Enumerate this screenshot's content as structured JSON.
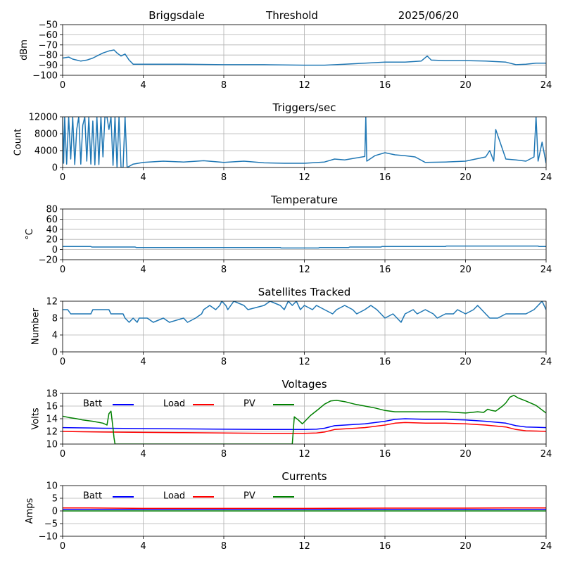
{
  "header": {
    "station": "Briggsdale",
    "mode": "Threshold",
    "date": "2025/06/20"
  },
  "chart_data": [
    {
      "type": "line",
      "title": "",
      "xlabel": "",
      "ylabel": "dBm",
      "xlim": [
        0,
        24
      ],
      "ylim": [
        -100,
        -50
      ],
      "xticks": [
        0,
        4,
        8,
        12,
        16,
        20,
        24
      ],
      "yticks": [
        -100,
        -90,
        -80,
        -70,
        -60,
        -50
      ],
      "grid": true,
      "series": [
        {
          "color": "#1f77b4",
          "x": [
            0,
            0.3,
            0.5,
            0.7,
            0.9,
            1.2,
            1.5,
            1.8,
            2.0,
            2.3,
            2.55,
            2.7,
            2.9,
            3.1,
            3.3,
            3.5,
            4,
            6,
            8,
            10,
            12,
            13,
            14,
            15,
            16,
            17,
            17.8,
            18.1,
            18.3,
            19,
            20,
            21,
            22,
            22.5,
            23,
            23.5,
            24
          ],
          "y": [
            -83,
            -82,
            -84,
            -85,
            -86,
            -85,
            -83,
            -80,
            -78,
            -76,
            -75,
            -78,
            -81,
            -79,
            -85,
            -89,
            -89,
            -89,
            -89.5,
            -89.5,
            -90,
            -90,
            -89,
            -88,
            -87,
            -87,
            -86,
            -81,
            -85,
            -85.5,
            -85.5,
            -86,
            -87,
            -89.5,
            -89,
            -88,
            -88
          ]
        }
      ]
    },
    {
      "type": "line",
      "title": "Triggers/sec",
      "xlabel": "",
      "ylabel": "Count",
      "xlim": [
        0,
        24
      ],
      "ylim": [
        0,
        12000
      ],
      "xticks": [
        0,
        4,
        8,
        12,
        16,
        20,
        24
      ],
      "yticks": [
        0,
        4000,
        8000,
        12000
      ],
      "grid": true,
      "series": [
        {
          "color": "#1f77b4",
          "x": [
            0,
            0.05,
            0.1,
            0.2,
            0.3,
            0.4,
            0.5,
            0.6,
            0.7,
            0.8,
            0.9,
            1.0,
            1.1,
            1.2,
            1.3,
            1.4,
            1.5,
            1.6,
            1.7,
            1.8,
            1.9,
            2.0,
            2.1,
            2.2,
            2.3,
            2.4,
            2.5,
            2.6,
            2.7,
            2.8,
            2.9,
            3.0,
            3.1,
            3.2,
            3.5,
            4.0,
            5,
            6,
            7,
            8,
            9,
            10,
            11,
            12,
            13,
            13.5,
            14,
            14.5,
            15,
            15.05,
            15.1,
            15.5,
            16,
            16.5,
            17,
            17.5,
            18,
            19,
            20,
            20.5,
            21,
            21.2,
            21.4,
            21.5,
            22,
            22.5,
            23,
            23.4,
            23.5,
            23.6,
            23.8,
            24
          ],
          "y": [
            12000,
            1000,
            12000,
            800,
            12000,
            2000,
            12000,
            700,
            9000,
            12000,
            800,
            10000,
            12000,
            1500,
            12000,
            800,
            11000,
            600,
            12000,
            700,
            12000,
            2500,
            12000,
            12000,
            9000,
            12000,
            500,
            12000,
            0,
            12000,
            0,
            0,
            12000,
            0,
            800,
            1200,
            1500,
            1300,
            1600,
            1200,
            1500,
            1100,
            1000,
            1000,
            1300,
            2000,
            1800,
            2200,
            2600,
            12000,
            1500,
            2800,
            3500,
            3000,
            2800,
            2500,
            1200,
            1300,
            1500,
            2000,
            2500,
            4000,
            1500,
            9000,
            2000,
            1800,
            1500,
            2500,
            12000,
            1500,
            6000,
            1000
          ]
        }
      ]
    },
    {
      "type": "line",
      "title": "Temperature",
      "xlabel": "",
      "ylabel": "°C",
      "xlim": [
        0,
        24
      ],
      "ylim": [
        -20,
        80
      ],
      "xticks": [
        0,
        4,
        8,
        12,
        16,
        20,
        24
      ],
      "yticks": [
        -20,
        0,
        20,
        40,
        60,
        80
      ],
      "grid": true,
      "series": [
        {
          "color": "#1f77b4",
          "x": [
            0,
            1.4,
            1.45,
            3.6,
            3.65,
            10.8,
            10.85,
            12.7,
            12.75,
            14.2,
            14.25,
            15.8,
            15.85,
            19.0,
            19.05,
            23.6,
            23.65,
            24
          ],
          "y": [
            6,
            6,
            5,
            5,
            4,
            4,
            3,
            3,
            4,
            4,
            5,
            5,
            6,
            6,
            7,
            7,
            6,
            6
          ]
        }
      ]
    },
    {
      "type": "line",
      "title": "Satellites Tracked",
      "xlabel": "",
      "ylabel": "Number",
      "xlim": [
        0,
        24
      ],
      "ylim": [
        0,
        12
      ],
      "xticks": [
        0,
        4,
        8,
        12,
        16,
        20,
        24
      ],
      "yticks": [
        0,
        4,
        8,
        12
      ],
      "grid": true,
      "series": [
        {
          "color": "#1f77b4",
          "x": [
            0,
            0.25,
            0.4,
            1.4,
            1.5,
            2.3,
            2.4,
            3.0,
            3.1,
            3.3,
            3.5,
            3.7,
            3.8,
            4.2,
            4.5,
            5.0,
            5.3,
            6.0,
            6.2,
            6.6,
            6.9,
            7.0,
            7.3,
            7.6,
            7.8,
            7.9,
            8.1,
            8.2,
            8.5,
            9.0,
            9.2,
            10.0,
            10.3,
            10.8,
            11.0,
            11.2,
            11.4,
            11.6,
            11.8,
            12.0,
            12.4,
            12.6,
            13.0,
            13.4,
            13.6,
            14.0,
            14.4,
            14.6,
            15.0,
            15.3,
            15.6,
            15.8,
            16.0,
            16.4,
            16.6,
            16.8,
            17.0,
            17.4,
            17.6,
            18.0,
            18.4,
            18.6,
            19.0,
            19.4,
            19.6,
            20.0,
            20.4,
            20.6,
            20.8,
            21.0,
            21.2,
            21.4,
            21.6,
            22.0,
            22.4,
            22.6,
            23.0,
            23.4,
            23.6,
            23.8,
            24
          ],
          "y": [
            10,
            10,
            9,
            9,
            10,
            10,
            9,
            9,
            8,
            7,
            8,
            7,
            8,
            8,
            7,
            8,
            7,
            8,
            7,
            8,
            9,
            10,
            11,
            10,
            11,
            12,
            11,
            10,
            12,
            11,
            10,
            11,
            12,
            11,
            10,
            12,
            11,
            12,
            10,
            11,
            10,
            11,
            10,
            9,
            10,
            11,
            10,
            9,
            10,
            11,
            10,
            9,
            8,
            9,
            8,
            7,
            9,
            10,
            9,
            10,
            9,
            8,
            9,
            9,
            10,
            9,
            10,
            11,
            10,
            9,
            8,
            8,
            8,
            9,
            9,
            9,
            9,
            10,
            11,
            12,
            10
          ]
        }
      ]
    },
    {
      "type": "line",
      "title": "Voltages",
      "xlabel": "",
      "ylabel": "Volts",
      "xlim": [
        0,
        24
      ],
      "ylim": [
        10,
        18
      ],
      "xticks": [
        0,
        4,
        8,
        12,
        16,
        20,
        24
      ],
      "yticks": [
        10,
        12,
        14,
        16,
        18
      ],
      "grid": true,
      "legend": "top-left, horizontal",
      "series": [
        {
          "name": "Batt",
          "color": "#0000ff",
          "x": [
            0,
            1,
            2,
            4,
            6,
            8,
            10,
            12,
            12.6,
            13,
            13.5,
            14,
            15,
            16,
            16.5,
            17,
            18,
            19,
            20,
            21,
            22,
            22.5,
            23,
            23.5,
            24
          ],
          "y": [
            12.6,
            12.55,
            12.5,
            12.45,
            12.4,
            12.35,
            12.3,
            12.3,
            12.35,
            12.5,
            12.9,
            13.0,
            13.2,
            13.6,
            13.9,
            14.0,
            13.9,
            13.9,
            13.8,
            13.6,
            13.3,
            12.9,
            12.7,
            12.65,
            12.6
          ]
        },
        {
          "name": "Load",
          "color": "#ff0000",
          "x": [
            0,
            1,
            2,
            4,
            6,
            8,
            10,
            12,
            12.6,
            13,
            13.5,
            14,
            15,
            16,
            16.5,
            17,
            18,
            19,
            20,
            21,
            22,
            22.5,
            23,
            23.5,
            24
          ],
          "y": [
            12.0,
            11.95,
            11.9,
            11.85,
            11.8,
            11.75,
            11.7,
            11.7,
            11.75,
            11.9,
            12.3,
            12.4,
            12.6,
            13.0,
            13.3,
            13.4,
            13.3,
            13.3,
            13.2,
            13.0,
            12.7,
            12.3,
            12.1,
            12.05,
            12.0
          ]
        },
        {
          "name": "PV",
          "color": "#008000",
          "x": [
            0,
            0.3,
            0.7,
            1.0,
            1.5,
            2.0,
            2.2,
            2.3,
            2.4,
            2.5,
            2.55,
            2.6,
            11.4,
            11.5,
            11.7,
            11.9,
            12.0,
            12.3,
            12.7,
            13.0,
            13.3,
            13.6,
            14.0,
            14.5,
            15.0,
            15.5,
            16.0,
            16.5,
            17.0,
            18.0,
            19.0,
            20.0,
            20.3,
            20.6,
            20.9,
            21.1,
            21.3,
            21.5,
            21.8,
            22.0,
            22.2,
            22.4,
            22.6,
            23.0,
            23.5,
            24
          ],
          "y": [
            14.4,
            14.2,
            14.0,
            13.8,
            13.6,
            13.3,
            13.0,
            14.8,
            15.2,
            12.5,
            11.0,
            10.0,
            10.0,
            14.3,
            13.8,
            13.2,
            13.5,
            14.5,
            15.5,
            16.3,
            16.8,
            16.9,
            16.7,
            16.3,
            16.0,
            15.7,
            15.3,
            15.1,
            15.1,
            15.1,
            15.1,
            14.9,
            15.0,
            15.1,
            15.0,
            15.5,
            15.3,
            15.2,
            15.9,
            16.5,
            17.4,
            17.7,
            17.3,
            16.8,
            16.1,
            14.9
          ]
        }
      ]
    },
    {
      "type": "line",
      "title": "Currents",
      "xlabel": "",
      "ylabel": "Amps",
      "xlim": [
        0,
        24
      ],
      "ylim": [
        -10,
        10
      ],
      "xticks": [
        0,
        4,
        8,
        12,
        16,
        20,
        24
      ],
      "yticks": [
        -10,
        -5,
        0,
        5,
        10
      ],
      "grid": true,
      "legend": "top-left, horizontal",
      "series": [
        {
          "name": "Batt",
          "color": "#0000ff",
          "x": [
            0,
            24
          ],
          "y": [
            0.6,
            0.6
          ]
        },
        {
          "name": "Load",
          "color": "#ff0000",
          "x": [
            0,
            1,
            4,
            8,
            12,
            16,
            20,
            22,
            24
          ],
          "y": [
            1.2,
            1.2,
            1.0,
            1.0,
            1.0,
            1.1,
            1.1,
            1.2,
            1.2
          ]
        },
        {
          "name": "PV",
          "color": "#008000",
          "x": [
            0,
            24
          ],
          "y": [
            0,
            0
          ]
        }
      ]
    }
  ]
}
